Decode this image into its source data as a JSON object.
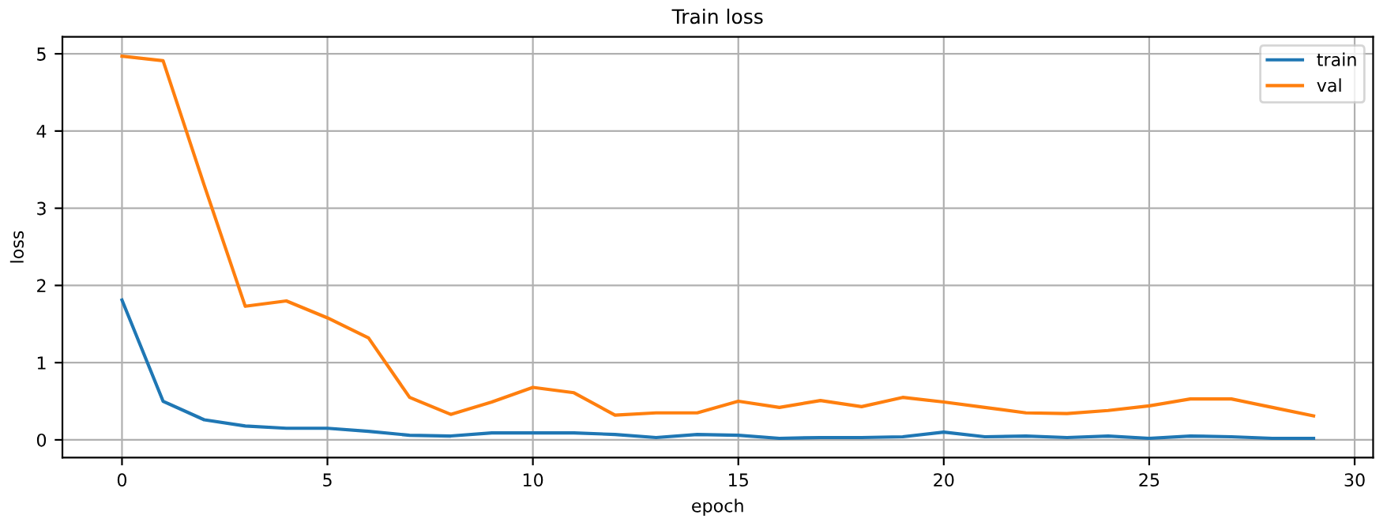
{
  "chart_data": {
    "type": "line",
    "title": "Train loss",
    "xlabel": "epoch",
    "ylabel": "loss",
    "x": [
      0,
      1,
      2,
      3,
      4,
      5,
      6,
      7,
      8,
      9,
      10,
      11,
      12,
      13,
      14,
      15,
      16,
      17,
      18,
      19,
      20,
      21,
      22,
      23,
      24,
      25,
      26,
      27,
      28,
      29
    ],
    "series": [
      {
        "name": "train",
        "color": "#1f77b4",
        "values": [
          1.81,
          0.5,
          0.26,
          0.18,
          0.15,
          0.15,
          0.11,
          0.06,
          0.05,
          0.09,
          0.09,
          0.09,
          0.07,
          0.03,
          0.07,
          0.06,
          0.02,
          0.03,
          0.03,
          0.04,
          0.1,
          0.04,
          0.05,
          0.03,
          0.05,
          0.02,
          0.05,
          0.04,
          0.02,
          0.02
        ]
      },
      {
        "name": "val",
        "color": "#ff7f0e",
        "values": [
          4.97,
          4.91,
          3.3,
          1.73,
          1.8,
          1.58,
          1.32,
          0.55,
          0.33,
          0.49,
          0.68,
          0.61,
          0.32,
          0.35,
          0.35,
          0.5,
          0.42,
          0.51,
          0.43,
          0.55,
          0.49,
          0.42,
          0.35,
          0.34,
          0.38,
          0.44,
          0.53,
          0.53,
          0.42,
          0.31
        ]
      }
    ],
    "xlim": [
      -1.45,
      30.45
    ],
    "ylim": [
      -0.23,
      5.22
    ],
    "xticks": [
      0,
      5,
      10,
      15,
      20,
      25,
      30
    ],
    "yticks": [
      0,
      1,
      2,
      3,
      4,
      5
    ],
    "grid": true,
    "legend": "top right",
    "marker": "none",
    "line_style": "solid"
  }
}
